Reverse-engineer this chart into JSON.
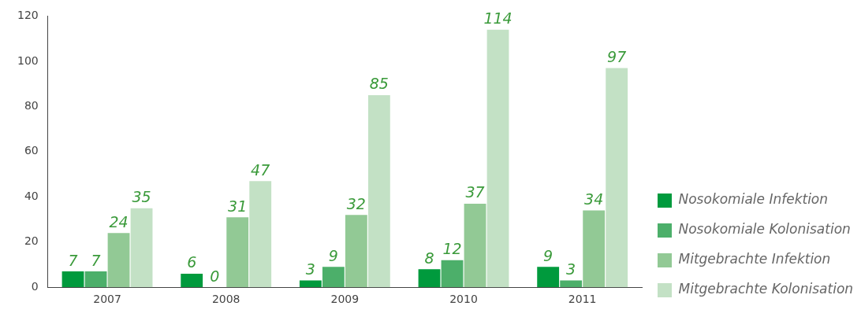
{
  "chart_data": {
    "type": "bar",
    "categories": [
      "2007",
      "2008",
      "2009",
      "2010",
      "2011"
    ],
    "series": [
      {
        "name": "Nosokomiale Infektion",
        "color": "#009a3d",
        "values": [
          7,
          6,
          3,
          8,
          9
        ]
      },
      {
        "name": "Nosokomiale Kolonisation",
        "color": "#4caf6a",
        "values": [
          7,
          0,
          9,
          12,
          3
        ]
      },
      {
        "name": "Mitgebrachte Infektion",
        "color": "#92c995",
        "values": [
          24,
          31,
          32,
          37,
          34
        ]
      },
      {
        "name": "Mitgebrachte Kolonisation",
        "color": "#c3e1c5",
        "values": [
          35,
          47,
          85,
          114,
          97
        ]
      }
    ],
    "ylim": [
      0,
      120
    ],
    "yticks": [
      0,
      20,
      40,
      60,
      80,
      100,
      120
    ],
    "grid": false,
    "legend": "right",
    "data_labels": true
  }
}
